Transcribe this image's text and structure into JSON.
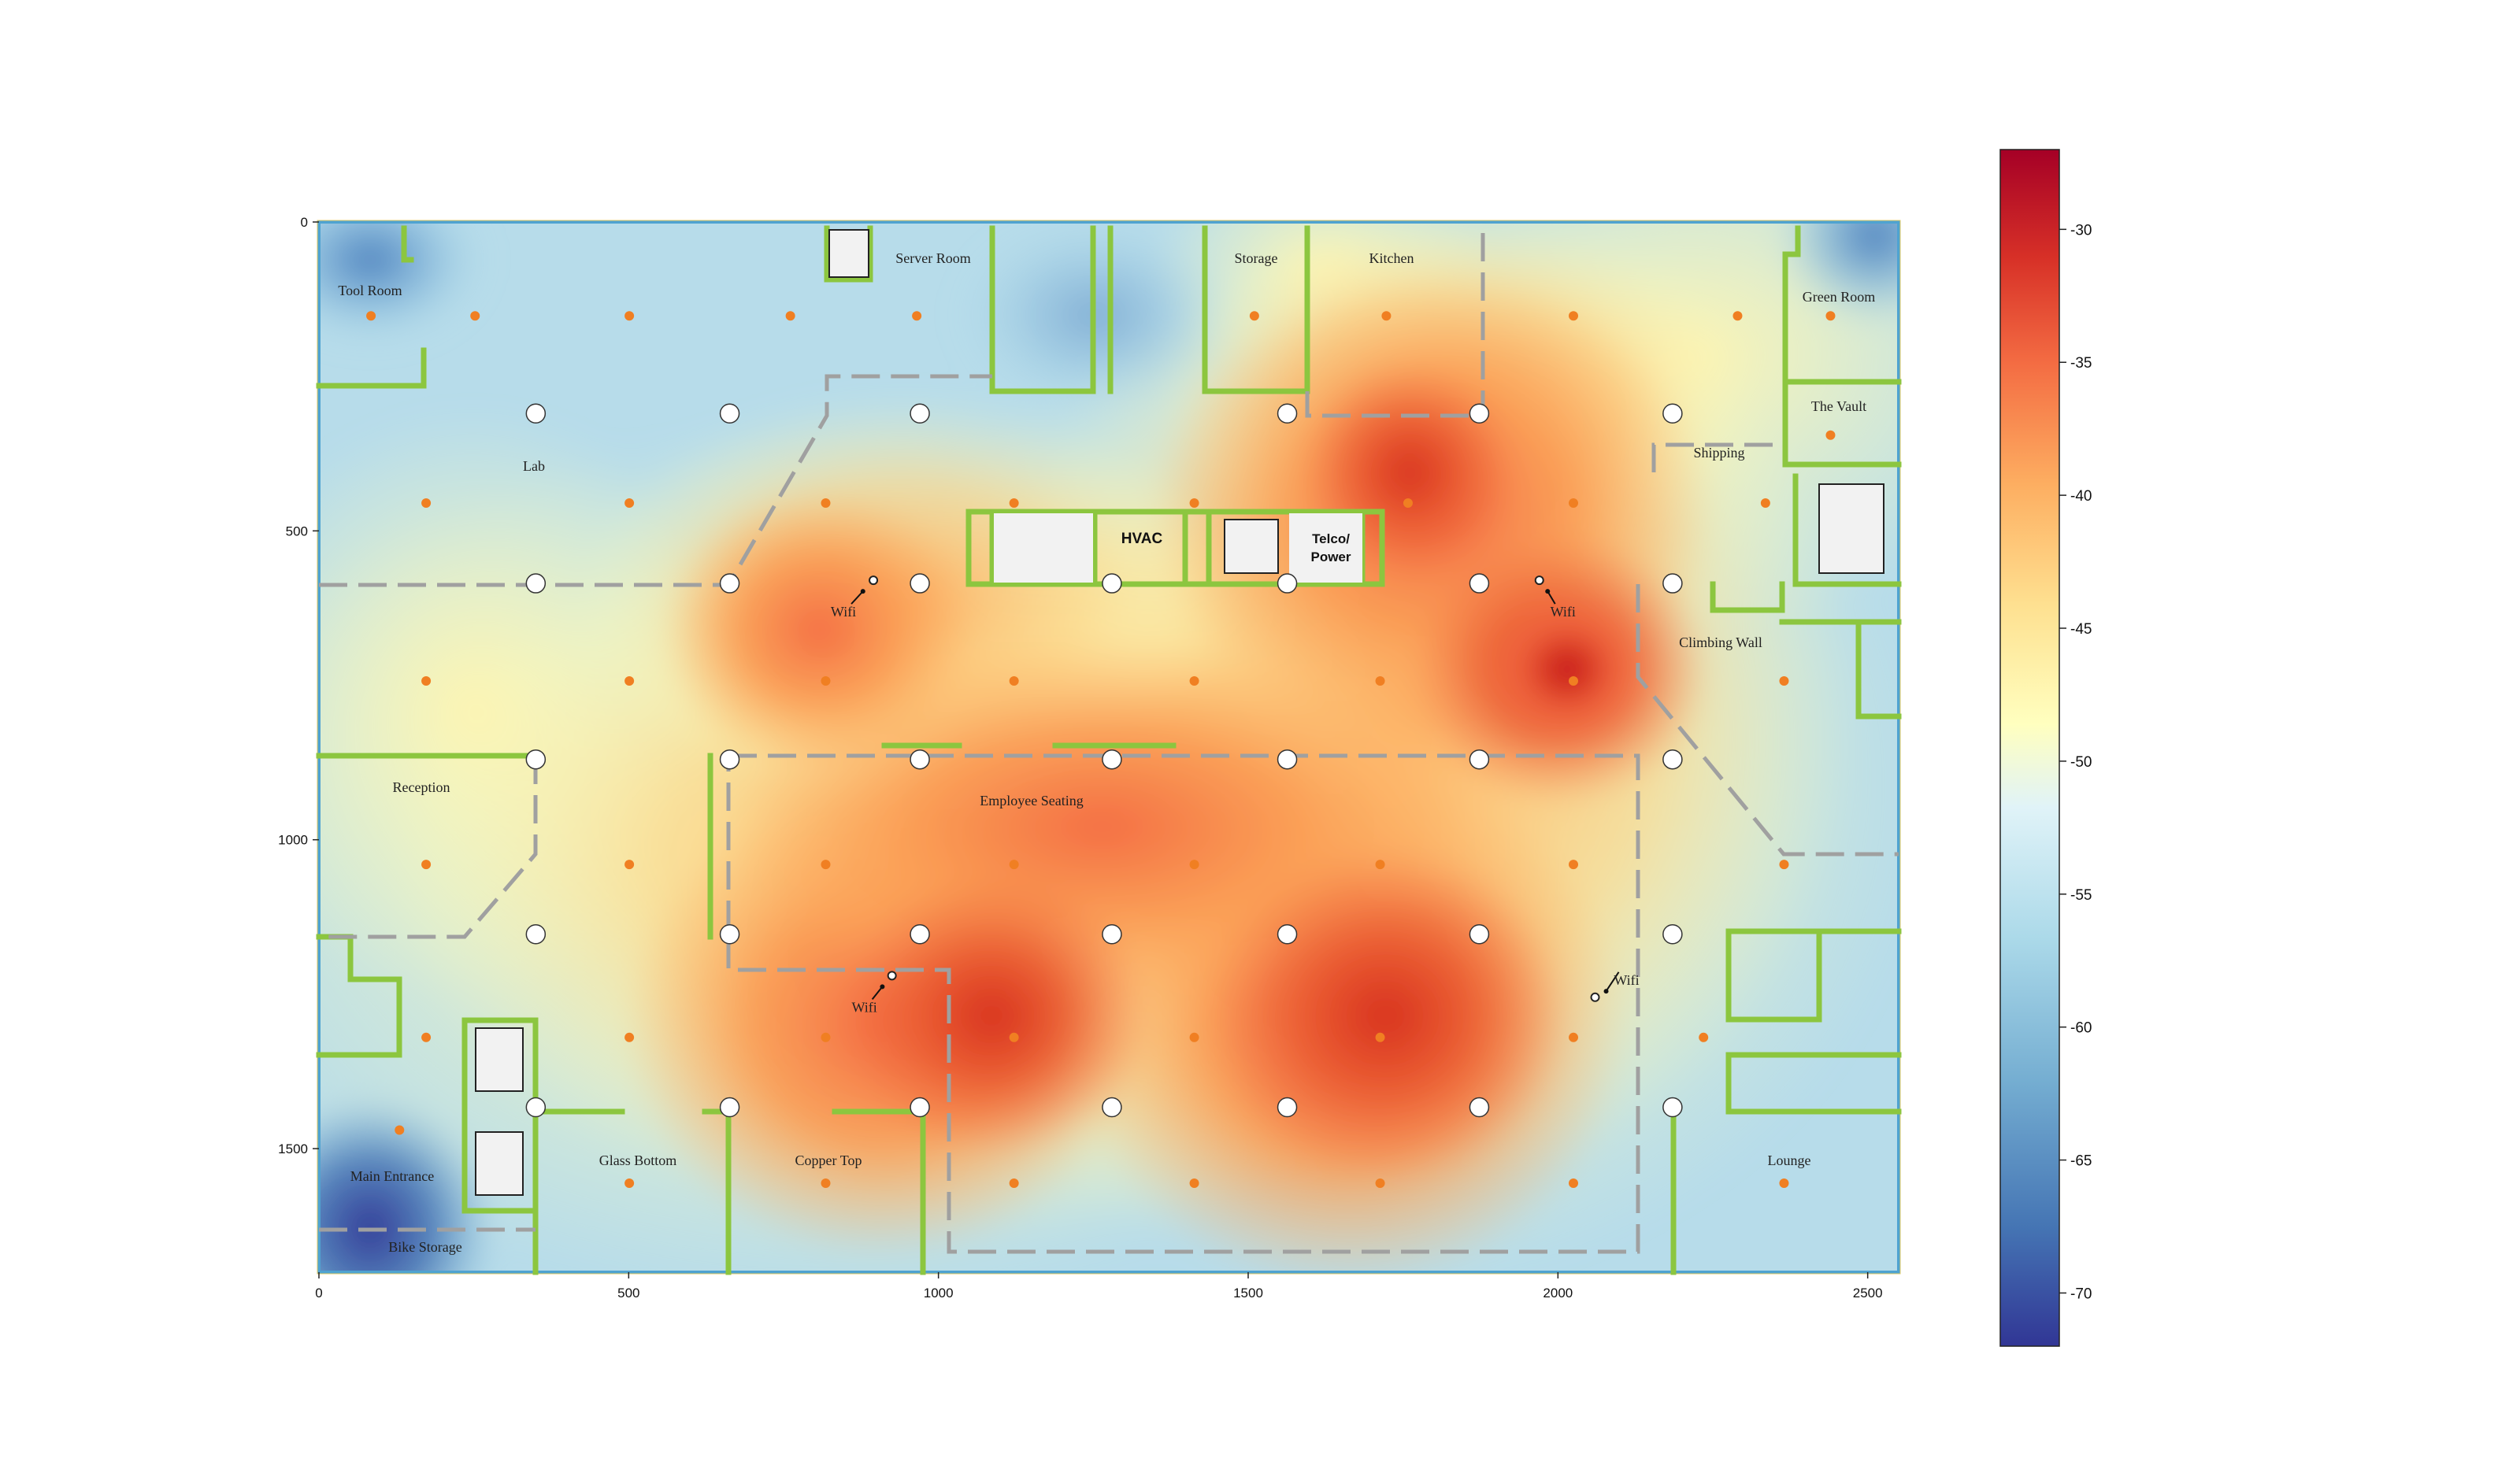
{
  "map": {
    "x_ticks": [
      "0",
      "500",
      "1000",
      "1500",
      "2000",
      "2500"
    ],
    "y_ticks": [
      "0",
      "500",
      "1000",
      "1500"
    ],
    "x_range": [
      0,
      2550
    ],
    "y_range": [
      0,
      1700
    ],
    "rooms": [
      {
        "id": "tool-room",
        "label": "Tool Room"
      },
      {
        "id": "server-room",
        "label": "Server Room"
      },
      {
        "id": "storage",
        "label": "Storage"
      },
      {
        "id": "kitchen",
        "label": "Kitchen"
      },
      {
        "id": "green-room",
        "label": "Green Room"
      },
      {
        "id": "the-vault",
        "label": "The Vault"
      },
      {
        "id": "shipping",
        "label": "Shipping"
      },
      {
        "id": "lab",
        "label": "Lab"
      },
      {
        "id": "climbing-wall",
        "label": "Climbing Wall"
      },
      {
        "id": "reception",
        "label": "Reception"
      },
      {
        "id": "employee-seating",
        "label": "Employee Seating"
      },
      {
        "id": "glass-bottom",
        "label": "Glass Bottom"
      },
      {
        "id": "copper-top",
        "label": "Copper Top"
      },
      {
        "id": "lounge",
        "label": "Lounge"
      },
      {
        "id": "main-entrance",
        "label": "Main Entrance"
      },
      {
        "id": "bike-storage",
        "label": "Bike Storage"
      }
    ],
    "equipment": {
      "hvac": "HVAC",
      "telco_line1": "Telco/",
      "telco_line2": "Power"
    },
    "access_points": [
      {
        "label": "Wifi",
        "x": 895,
        "y": 580
      },
      {
        "label": "Wifi",
        "x": 1970,
        "y": 580
      },
      {
        "label": "Wifi",
        "x": 925,
        "y": 1220
      },
      {
        "label": "Wifi",
        "x": 2060,
        "y": 1255
      }
    ],
    "signal_peaks_dbm": [
      {
        "x": 2030,
        "y": 730,
        "value": -30
      },
      {
        "x": 1120,
        "y": 1280,
        "value": -35
      },
      {
        "x": 1710,
        "y": 1280,
        "value": -35
      },
      {
        "x": 1740,
        "y": 470,
        "value": -36
      },
      {
        "x": 815,
        "y": 720,
        "value": -40
      }
    ],
    "colors": {
      "wall": "#8cc63f",
      "partition": "#a0a0a0",
      "sample_point": "#f07f22",
      "frame": "#4fa3d1"
    }
  },
  "colorbar": {
    "ticks": [
      "-30",
      "-35",
      "-40",
      "-45",
      "-50",
      "-55",
      "-60",
      "-65",
      "-70"
    ],
    "range": [
      -72,
      -27
    ],
    "palette": "RdYlBu_r"
  }
}
